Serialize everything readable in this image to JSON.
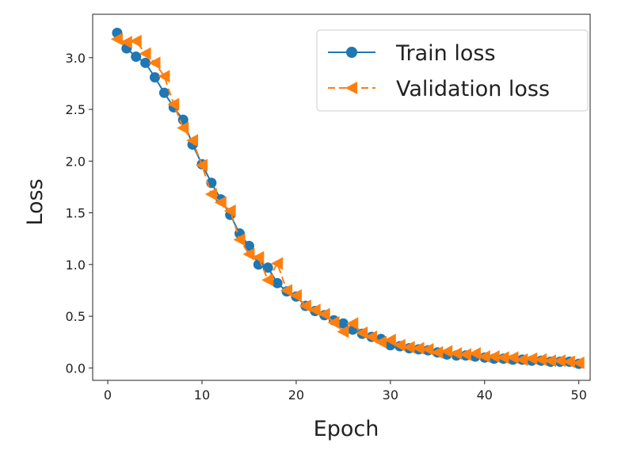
{
  "chart_data": {
    "type": "line",
    "title": "",
    "xlabel": "Epoch",
    "ylabel": "Loss",
    "xlim": [
      -1.6,
      51.2
    ],
    "ylim": [
      -0.12,
      3.42
    ],
    "xticks": [
      0,
      10,
      20,
      30,
      40,
      50
    ],
    "yticks": [
      0.0,
      0.5,
      1.0,
      1.5,
      2.0,
      2.5,
      3.0
    ],
    "ytick_labels": [
      "0.0",
      "0.5",
      "1.0",
      "1.5",
      "2.0",
      "2.5",
      "3.0"
    ],
    "grid": false,
    "legend": "top-right",
    "x": [
      1,
      2,
      3,
      4,
      5,
      6,
      7,
      8,
      9,
      10,
      11,
      12,
      13,
      14,
      15,
      16,
      17,
      18,
      19,
      20,
      21,
      22,
      23,
      24,
      25,
      26,
      27,
      28,
      29,
      30,
      31,
      32,
      33,
      34,
      35,
      36,
      37,
      38,
      39,
      40,
      41,
      42,
      43,
      44,
      45,
      46,
      47,
      48,
      49,
      50
    ],
    "series": [
      {
        "name": "Train loss",
        "color": "#1f77b4",
        "marker": "circle",
        "linestyle": "solid",
        "values": [
          3.24,
          3.09,
          3.01,
          2.95,
          2.81,
          2.66,
          2.52,
          2.4,
          2.16,
          1.97,
          1.79,
          1.63,
          1.48,
          1.3,
          1.18,
          1.0,
          0.97,
          0.82,
          0.74,
          0.69,
          0.6,
          0.55,
          0.51,
          0.46,
          0.43,
          0.37,
          0.33,
          0.3,
          0.28,
          0.22,
          0.21,
          0.19,
          0.18,
          0.17,
          0.15,
          0.13,
          0.12,
          0.12,
          0.11,
          0.1,
          0.09,
          0.09,
          0.08,
          0.08,
          0.07,
          0.07,
          0.06,
          0.06,
          0.06,
          0.04
        ]
      },
      {
        "name": "Validation loss",
        "color": "#ff7f0e",
        "marker": "triangle-left",
        "linestyle": "dashed",
        "values": [
          3.18,
          3.15,
          3.16,
          3.04,
          2.95,
          2.82,
          2.55,
          2.32,
          2.2,
          1.96,
          1.68,
          1.6,
          1.52,
          1.24,
          1.1,
          1.07,
          0.85,
          1.01,
          0.75,
          0.7,
          0.6,
          0.56,
          0.52,
          0.44,
          0.35,
          0.43,
          0.34,
          0.3,
          0.25,
          0.27,
          0.22,
          0.2,
          0.19,
          0.18,
          0.15,
          0.16,
          0.14,
          0.13,
          0.14,
          0.11,
          0.11,
          0.1,
          0.1,
          0.08,
          0.09,
          0.08,
          0.07,
          0.07,
          0.06,
          0.05
        ]
      }
    ]
  }
}
